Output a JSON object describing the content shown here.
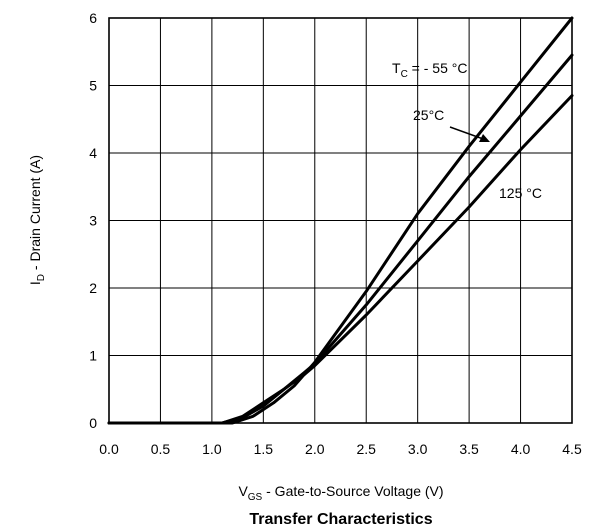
{
  "chart_data": {
    "type": "line",
    "title": "Transfer Characteristics",
    "xlabel": {
      "main": "V",
      "sub": "GS",
      "rest": " - Gate-to-Source Voltage (V)"
    },
    "ylabel": {
      "main": "I",
      "sub": "D",
      "rest": " - Drain Current (A)"
    },
    "xlim": [
      0,
      4.5
    ],
    "ylim": [
      0,
      6
    ],
    "xticks": [
      "0.0",
      "0.5",
      "1.0",
      "1.5",
      "2.0",
      "2.5",
      "3.0",
      "3.5",
      "4.0",
      "4.5"
    ],
    "yticks": [
      "0",
      "1",
      "2",
      "3",
      "4",
      "5",
      "6"
    ],
    "grid": true,
    "series": [
      {
        "name": "TC = -55 °C",
        "x": [
          0,
          1.2,
          1.4,
          1.6,
          1.8,
          2.0,
          2.5,
          3.0,
          3.5,
          4.0,
          4.5
        ],
        "y": [
          0,
          0,
          0.1,
          0.3,
          0.55,
          0.9,
          1.95,
          3.1,
          4.1,
          5.05,
          6.0
        ]
      },
      {
        "name": "25°C",
        "x": [
          0,
          1.1,
          1.3,
          1.5,
          1.7,
          1.9,
          2.0,
          2.5,
          3.0,
          3.5,
          4.0,
          4.5
        ],
        "y": [
          0,
          0,
          0.08,
          0.25,
          0.5,
          0.75,
          0.88,
          1.75,
          2.7,
          3.65,
          4.55,
          5.45
        ]
      },
      {
        "name": "125 °C",
        "x": [
          0,
          1.1,
          1.3,
          1.5,
          1.7,
          1.9,
          2.0,
          2.5,
          3.0,
          3.5,
          4.0,
          4.5
        ],
        "y": [
          0,
          0,
          0.1,
          0.3,
          0.5,
          0.72,
          0.85,
          1.6,
          2.4,
          3.2,
          4.05,
          4.85
        ]
      }
    ],
    "annotations": {
      "tc_main": "T",
      "tc_sub": "C",
      "tc_rest": " = -  55 °C",
      "t25": "25°C",
      "t125": "125 °C"
    }
  }
}
